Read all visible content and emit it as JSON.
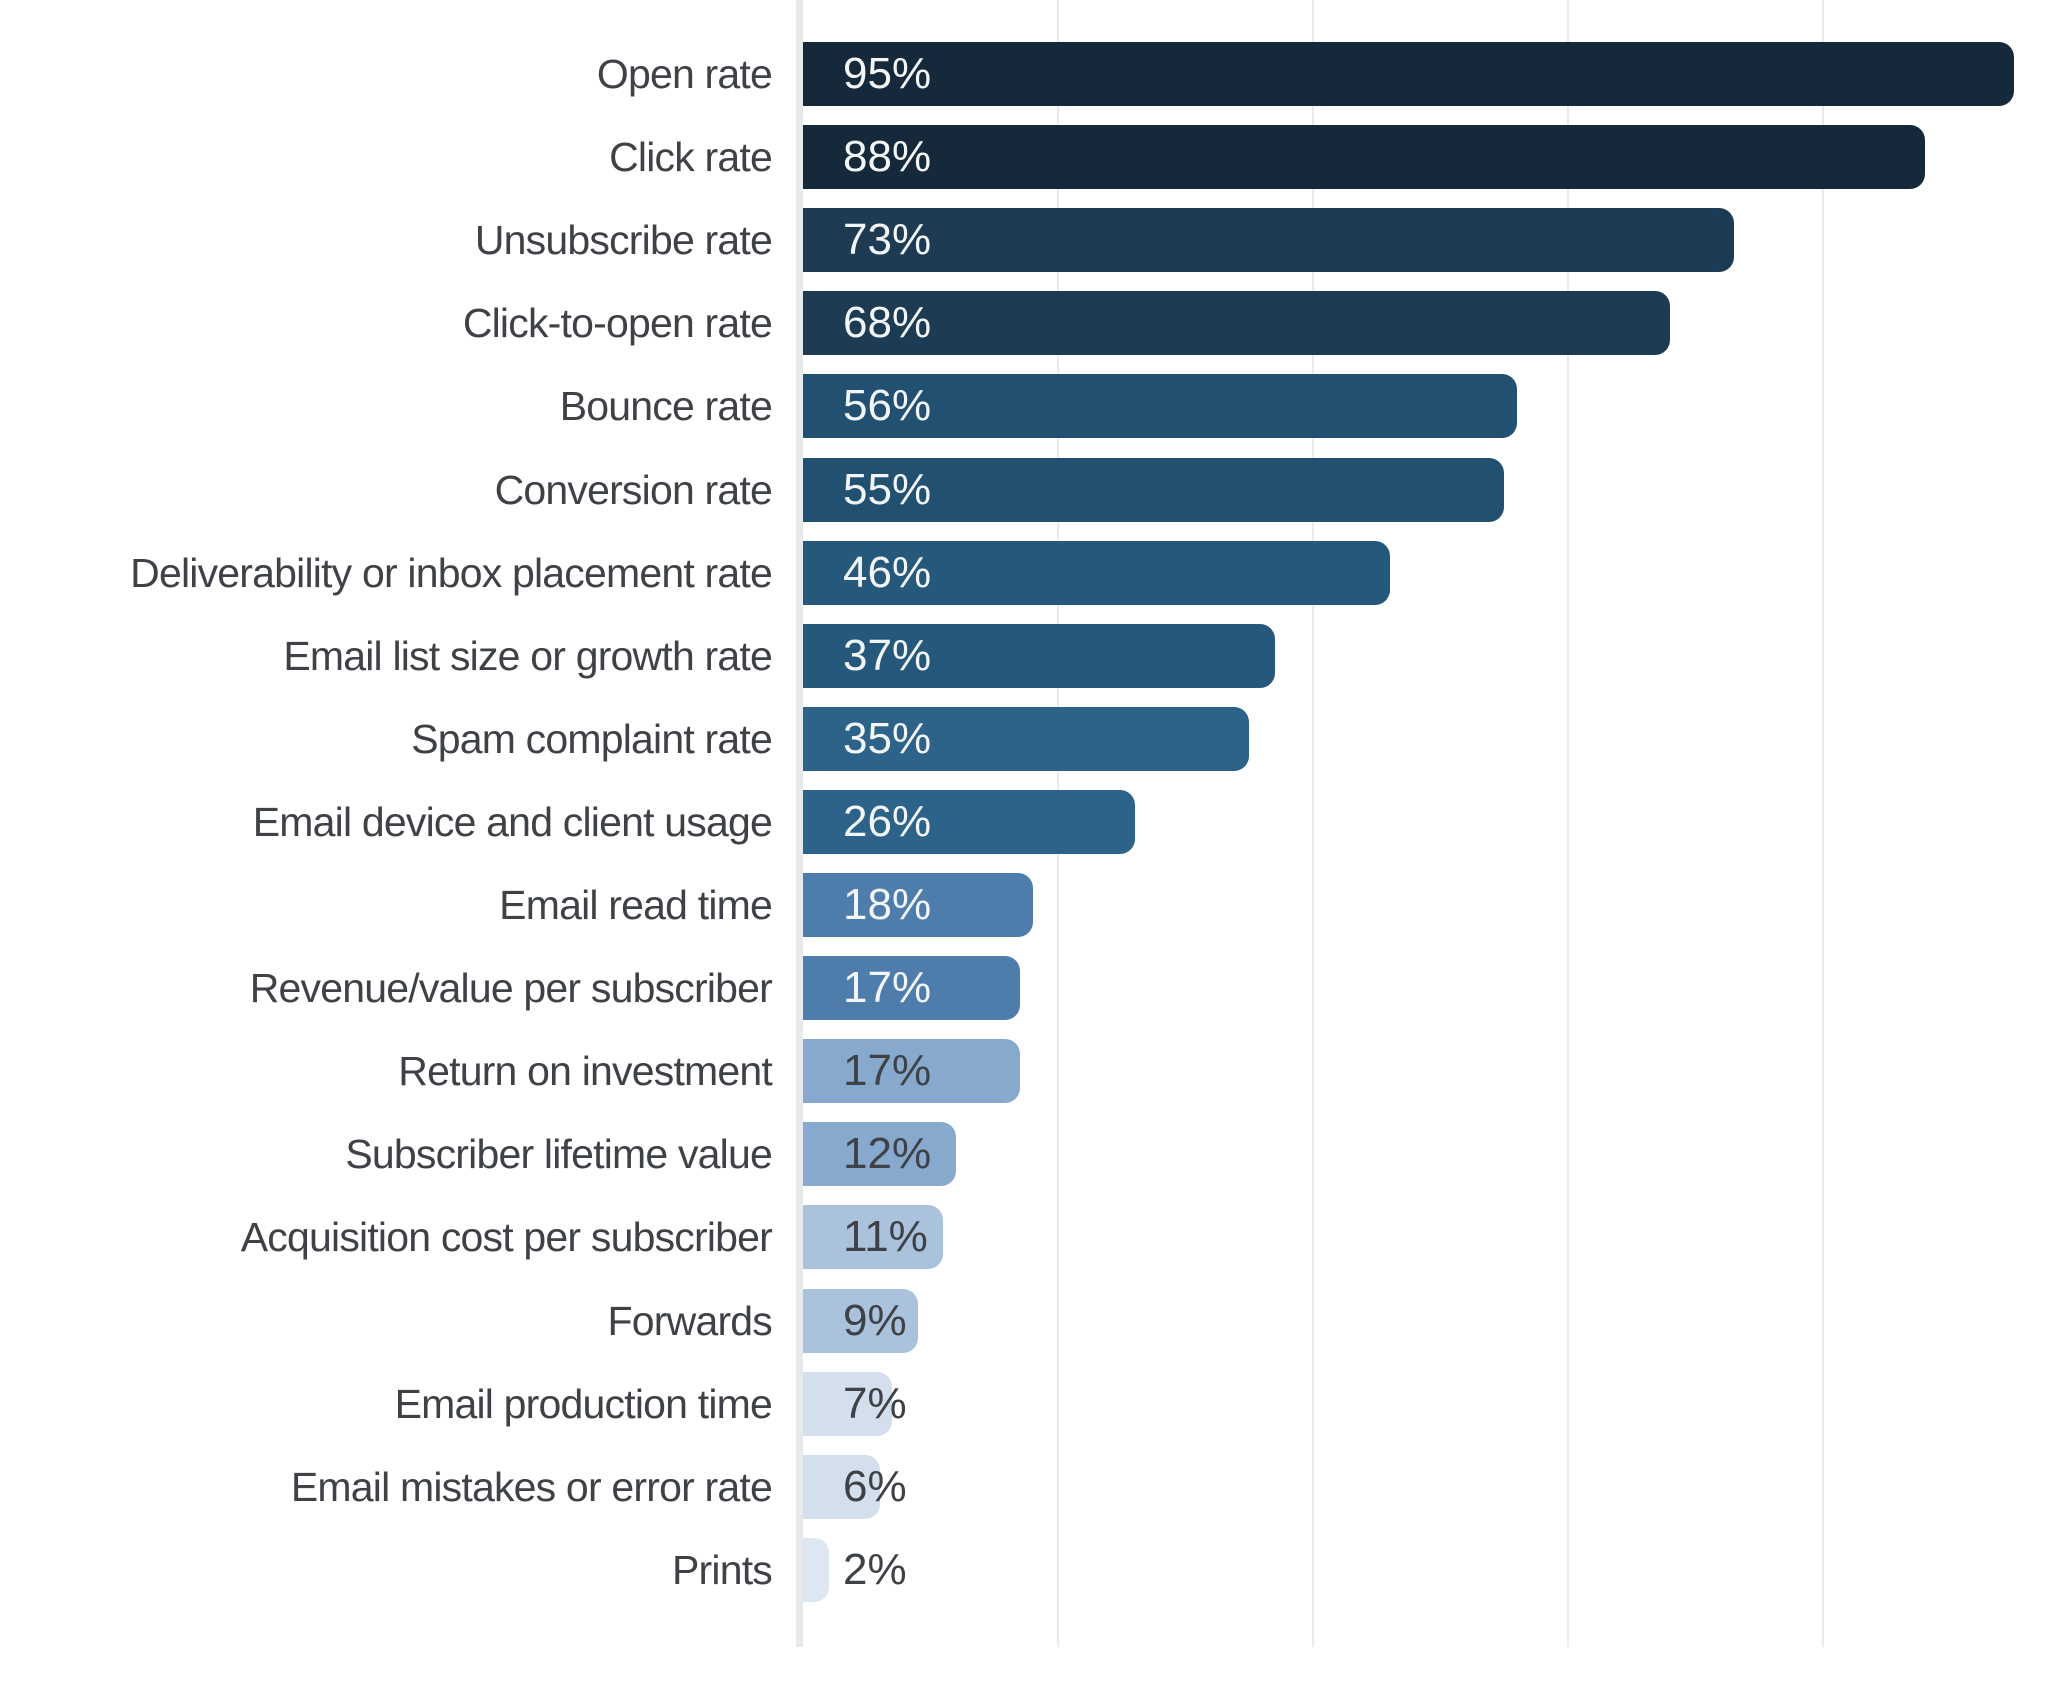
{
  "chart_data": {
    "type": "bar",
    "orientation": "horizontal",
    "title": "",
    "xlabel": "",
    "ylabel": "",
    "xlim": [
      0,
      100
    ],
    "grid": true,
    "legend": false,
    "x_gridline_interval_percent": 20,
    "x_tick_percents": [
      20,
      40,
      60,
      80
    ],
    "categories": [
      "Open rate",
      "Click rate",
      "Unsubscribe rate",
      "Click-to-open rate",
      "Bounce rate",
      "Conversion rate",
      "Deliverability or inbox placement rate",
      "Email list size or growth rate",
      "Spam complaint rate",
      "Email device and client usage",
      "Email read time",
      "Revenue/value per subscriber",
      "Return on investment",
      "Subscriber lifetime value",
      "Acquisition cost per subscriber",
      "Forwards",
      "Email production time",
      "Email mistakes or error rate",
      "Prints"
    ],
    "values": [
      95,
      88,
      73,
      68,
      56,
      55,
      46,
      37,
      35,
      26,
      18,
      17,
      17,
      12,
      11,
      9,
      7,
      6,
      2
    ],
    "value_labels": [
      "95%",
      "88%",
      "73%",
      "68%",
      "56%",
      "55%",
      "46%",
      "37%",
      "35%",
      "26%",
      "18%",
      "17%",
      "17%",
      "12%",
      "11%",
      "9%",
      "7%",
      "6%",
      "2%"
    ],
    "bar_colors": [
      "#15293b",
      "#15293b",
      "#1d3b52",
      "#1d3b52",
      "#215070",
      "#215070",
      "#26587c",
      "#26587c",
      "#2d6289",
      "#2d6289",
      "#4e7cab",
      "#4e7cab",
      "#88a9ce",
      "#88a9ce",
      "#aac2dc",
      "#aac2dc",
      "#d3dfec",
      "#d3dfec",
      "#dde7f1"
    ],
    "value_text_colors": [
      "#f2f6f9",
      "#f2f6f9",
      "#f2f6f9",
      "#f2f6f9",
      "#f2f6f9",
      "#f2f6f9",
      "#f2f6f9",
      "#f2f6f9",
      "#f2f6f9",
      "#f2f6f9",
      "#f2f6f9",
      "#f2f6f9",
      "#3e4247",
      "#3e4247",
      "#3e4247",
      "#3e4247",
      "#3e4247",
      "#3e4247",
      "#3e4247"
    ],
    "category_label_color": "#3e4247",
    "gridline_color": "#e9ebee",
    "axis_line_color": "#e7eaed"
  }
}
